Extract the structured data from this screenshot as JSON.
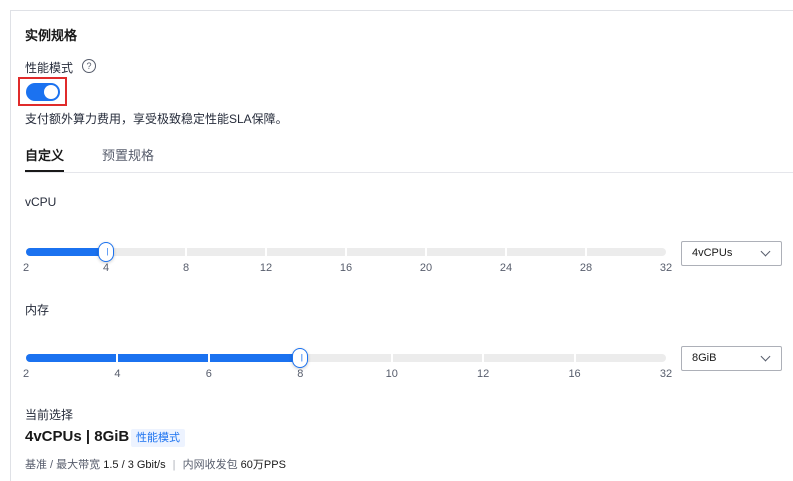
{
  "section": {
    "title": "实例规格"
  },
  "performance_mode": {
    "label": "性能模式",
    "help_icon": "question-circle-icon",
    "enabled": true,
    "description": "支付额外算力费用，享受极致稳定性能SLA保障。",
    "toggle_color": "#1b72f0"
  },
  "tabs": [
    {
      "label": "自定义",
      "active": true
    },
    {
      "label": "预置规格",
      "active": false
    }
  ],
  "vcpu": {
    "label": "vCPU",
    "ticks": [
      "2",
      "4",
      "8",
      "12",
      "16",
      "20",
      "24",
      "28",
      "32"
    ],
    "selected_value": 4,
    "selected_label": "4vCPUs"
  },
  "memory": {
    "label": "内存",
    "ticks": [
      "2",
      "4",
      "6",
      "8",
      "10",
      "12",
      "16",
      "32"
    ],
    "selected_value": 8,
    "selected_label": "8GiB"
  },
  "current": {
    "label": "当前选择",
    "spec": "4vCPUs | 8GiB",
    "badge": "性能模式",
    "bandwidth_label": "基准 / 最大带宽",
    "bandwidth_value": "1.5 / 3 Gbit/s",
    "pps_label": "内网收发包",
    "pps_value": "60万PPS"
  },
  "colors": {
    "accent": "#1b72f0",
    "highlight_frame": "#e02b2b"
  }
}
